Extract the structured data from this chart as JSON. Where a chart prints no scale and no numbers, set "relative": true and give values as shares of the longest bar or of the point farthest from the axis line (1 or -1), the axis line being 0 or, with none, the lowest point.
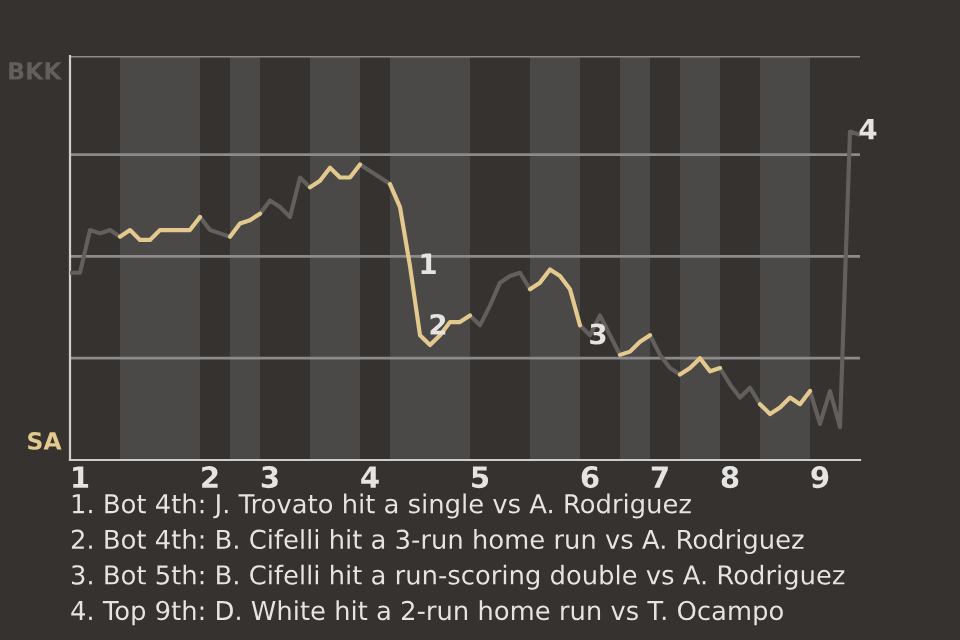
{
  "chart_data": {
    "type": "line",
    "relative": true,
    "categories": [
      null,
      "1",
      null,
      null,
      null,
      null,
      null,
      null,
      null,
      null,
      null,
      null,
      null,
      null,
      "2",
      null,
      null,
      null,
      null,
      null,
      "3",
      null,
      null,
      null,
      null,
      null,
      null,
      null,
      null,
      null,
      "4",
      null,
      null,
      null,
      null,
      null,
      null,
      null,
      null,
      null,
      null,
      "5",
      null,
      null,
      null,
      null,
      null,
      null,
      null,
      null,
      null,
      null,
      "6",
      null,
      null,
      null,
      null,
      null,
      null,
      "7",
      null,
      null,
      null,
      null,
      null,
      null,
      "8",
      null,
      null,
      null,
      null,
      null,
      null,
      null,
      null,
      "9",
      null,
      null,
      null,
      null
    ],
    "series": [
      {
        "color": "#625f5c",
        "values": [
          0.57,
          0.57,
          0.7,
          0.69,
          0.7,
          0.68,
          null,
          null,
          null,
          null,
          null,
          null,
          null,
          0.74,
          0.7,
          0.69,
          0.68,
          null,
          null,
          0.75,
          0.79,
          0.77,
          0.74,
          0.86,
          0.83,
          null,
          null,
          null,
          null,
          0.9,
          0.88,
          0.86,
          0.84,
          null,
          null,
          null,
          null,
          null,
          null,
          null,
          0.44,
          0.41,
          0.47,
          0.54,
          0.56,
          0.57,
          0.52,
          null,
          null,
          null,
          null,
          0.41,
          0.38,
          0.44,
          0.38,
          0.32,
          null,
          null,
          0.38,
          0.32,
          0.28,
          0.26,
          null,
          null,
          null,
          0.28,
          0.23,
          0.19,
          0.22,
          0.17,
          null,
          null,
          null,
          null,
          0.21,
          0.11,
          0.21,
          0.1,
          1,
          0.99
        ]
      },
      {
        "color": "#e3c98e",
        "values": [
          null,
          null,
          null,
          null,
          null,
          0.68,
          0.7,
          0.67,
          0.67,
          0.7,
          0.7,
          0.7,
          0.7,
          0.74,
          null,
          null,
          0.68,
          0.72,
          0.73,
          0.75,
          null,
          null,
          null,
          null,
          0.83,
          0.85,
          0.89,
          0.86,
          0.86,
          0.9,
          null,
          null,
          0.84,
          0.77,
          0.59,
          0.38,
          0.35,
          0.38,
          0.42,
          0.42,
          0.44,
          null,
          null,
          null,
          null,
          null,
          0.52,
          0.54,
          0.58,
          0.56,
          0.52,
          0.41,
          null,
          null,
          null,
          0.32,
          0.33,
          0.36,
          0.38,
          null,
          null,
          0.26,
          0.28,
          0.31,
          0.27,
          0.28,
          null,
          null,
          null,
          0.17,
          0.14,
          0.16,
          0.19,
          0.17,
          0.21,
          null,
          null,
          null,
          null,
          null
        ]
      }
    ],
    "ref_lines": [
      {
        "axis": "y",
        "value": 0.31,
        "color": "#8d8b89"
      },
      {
        "axis": "y",
        "value": 0.62,
        "color": "#8d8b89"
      },
      {
        "axis": "y",
        "value": 0.93,
        "color": "#8d8b89"
      },
      {
        "axis": "y",
        "value": 1.23,
        "color": "#8d8b89"
      }
    ],
    "annotations": [
      "BKK",
      "SA",
      {
        "text": "1",
        "y": 0.59
      },
      {
        "text": "2",
        "y": 0.38
      },
      {
        "text": "3",
        "y": 0.41
      },
      {
        "text": "4",
        "y": 1
      },
      "1. Bot 4th: J. Trovato hit a single vs A. Rodriguez",
      "2. Bot 4th: B. Cifelli hit a 3-run home run vs A. Rodriguez",
      "3. Bot 5th: B. Cifelli hit a run-scoring double vs A. Rodriguez",
      "4. Top 9th: D. White hit a 2-run home run vs T. Ocampo"
    ]
  }
}
